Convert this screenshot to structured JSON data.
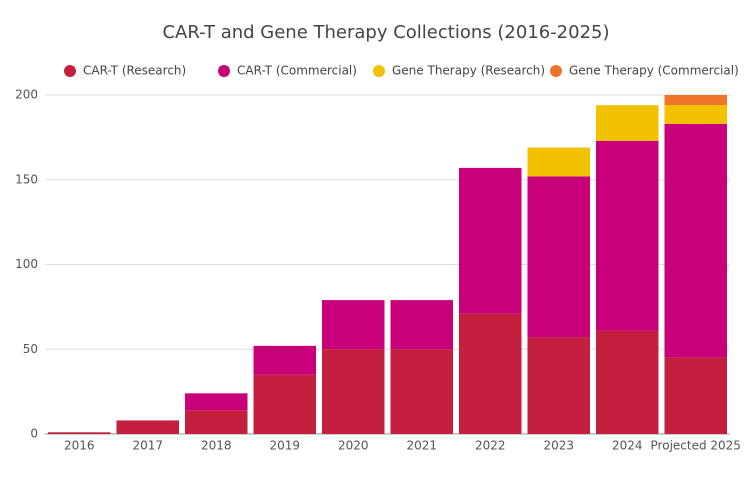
{
  "chart_data": {
    "type": "stacked_bar",
    "title": "CAR-T and Gene Therapy Collections (2016-2025)",
    "categories": [
      "2016",
      "2017",
      "2018",
      "2019",
      "2020",
      "2021",
      "2022",
      "2023",
      "2024",
      "Projected 2025"
    ],
    "series": [
      {
        "name": "CAR-T (Research)",
        "color": "#c41f3e",
        "values": [
          1,
          8,
          14,
          35,
          50,
          50,
          71,
          57,
          61,
          45
        ]
      },
      {
        "name": "CAR-T (Commercial)",
        "color": "#c8007a",
        "values": [
          0,
          0,
          10,
          17,
          29,
          29,
          86,
          95,
          112,
          138
        ]
      },
      {
        "name": "Gene Therapy (Research)",
        "color": "#f2c200",
        "values": [
          0,
          0,
          0,
          0,
          0,
          0,
          0,
          17,
          21,
          11
        ]
      },
      {
        "name": "Gene Therapy (Commercial)",
        "color": "#f07427",
        "values": [
          0,
          0,
          0,
          0,
          0,
          0,
          0,
          0,
          0,
          6
        ]
      }
    ],
    "ylim": [
      0,
      200
    ],
    "yticks": [
      0,
      50,
      100,
      150,
      200
    ],
    "grid": true,
    "legend": "top"
  }
}
